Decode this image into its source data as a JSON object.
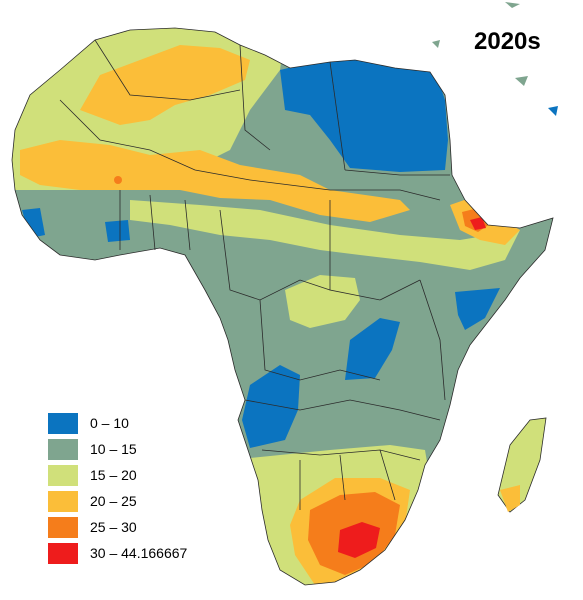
{
  "map": {
    "title": "2020s",
    "legend": [
      {
        "label": "0 – 10",
        "color": "#0b74c0"
      },
      {
        "label": "10 – 15",
        "color": "#7fa58f"
      },
      {
        "label": "15 – 20",
        "color": "#d0e07a"
      },
      {
        "label": "20 – 25",
        "color": "#fbbe39"
      },
      {
        "label": "25 – 30",
        "color": "#f57d1b"
      },
      {
        "label": "30 – 44.166667",
        "color": "#ee1c1c"
      }
    ],
    "colors": {
      "background": "#ffffff",
      "border": "#2b2b2b",
      "c0_10": "#0b74c0",
      "c10_15": "#7fa58f",
      "c15_20": "#d0e07a",
      "c20_25": "#fbbe39",
      "c25_30": "#f57d1b",
      "c30_44": "#ee1c1c"
    }
  }
}
